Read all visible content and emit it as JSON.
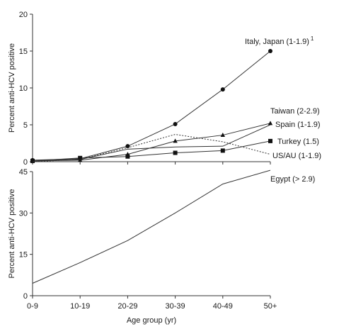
{
  "chart_data": [
    {
      "type": "line",
      "ylabel": "Percent anti-HCV positive",
      "xlabel": "",
      "ylim": [
        0,
        20
      ],
      "yticks": [
        0,
        5,
        10,
        15,
        20
      ],
      "categories": [
        "0-9",
        "10-19",
        "20-29",
        "30-39",
        "40-49",
        "50+"
      ],
      "series": [
        {
          "name": "Italy, Japan (1-1.9)",
          "superscript": "1",
          "marker": "circle",
          "line": "solid",
          "values": [
            0.2,
            0.4,
            2.1,
            5.1,
            9.8,
            15.0
          ]
        },
        {
          "name": "Taiwan (2-2.9)",
          "marker": "none",
          "line": "solid",
          "values": [
            0.1,
            0.3,
            1.7,
            2.0,
            2.1,
            5.0
          ]
        },
        {
          "name": "Spain (1-1.9)",
          "marker": "triangle",
          "line": "solid",
          "values": [
            0.1,
            0.2,
            1.0,
            2.8,
            3.6,
            5.2
          ]
        },
        {
          "name": "Turkey (1.5)",
          "marker": "square",
          "line": "solid",
          "values": [
            0.1,
            0.5,
            0.7,
            1.2,
            1.5,
            2.8
          ]
        },
        {
          "name": "US/AU (1-1.9)",
          "marker": "none",
          "line": "dashed",
          "values": [
            0.0,
            0.3,
            1.9,
            3.7,
            2.7,
            1.0
          ]
        }
      ]
    },
    {
      "type": "line",
      "ylabel": "Percent anti-HCV positive",
      "xlabel": "Age group (yr)",
      "ylim": [
        0,
        45
      ],
      "yticks": [
        0,
        15,
        30,
        45
      ],
      "categories": [
        "0-9",
        "10-19",
        "20-29",
        "30-39",
        "40-49",
        "50+"
      ],
      "series": [
        {
          "name": "Egypt (> 2.9)",
          "marker": "none",
          "line": "solid",
          "values": [
            4.5,
            12.0,
            20.0,
            30.0,
            40.5,
            45.5
          ]
        }
      ]
    }
  ]
}
